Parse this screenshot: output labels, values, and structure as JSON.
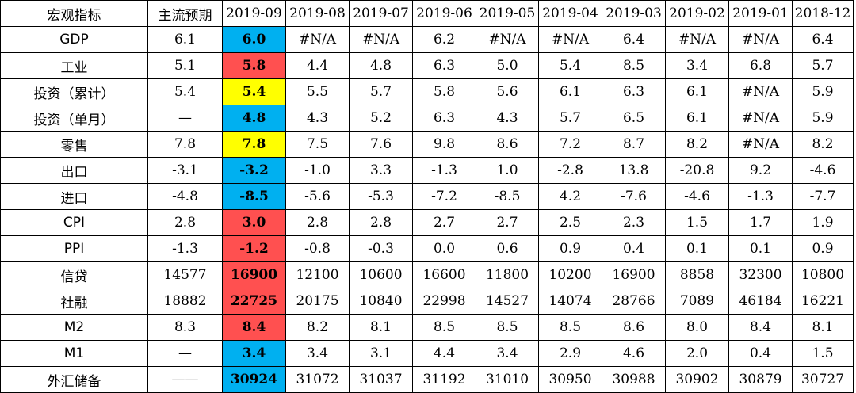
{
  "table": {
    "columns": [
      "宏观指标",
      "主流预期",
      "2019-09",
      "2019-08",
      "2019-07",
      "2019-06",
      "2019-05",
      "2019-04",
      "2019-03",
      "2019-02",
      "2019-01",
      "2018-12"
    ],
    "highlight_colors": {
      "blue": "#00b0f0",
      "red": "#ff5050",
      "yellow": "#ffff00"
    },
    "rows": [
      {
        "indicator": "GDP",
        "expected": "6.1",
        "highlight": "blue",
        "values": [
          "6.0",
          "#N/A",
          "#N/A",
          "6.2",
          "#N/A",
          "#N/A",
          "6.4",
          "#N/A",
          "#N/A",
          "6.4"
        ]
      },
      {
        "indicator": "工业",
        "expected": "5.1",
        "highlight": "red",
        "values": [
          "5.8",
          "4.4",
          "4.8",
          "6.3",
          "5.0",
          "5.4",
          "8.5",
          "3.4",
          "6.8",
          "5.7"
        ]
      },
      {
        "indicator": "投资（累计）",
        "expected": "5.4",
        "highlight": "yellow",
        "values": [
          "5.4",
          "5.5",
          "5.7",
          "5.8",
          "5.6",
          "6.1",
          "6.3",
          "6.1",
          "#N/A",
          "5.9"
        ]
      },
      {
        "indicator": "投资（单月）",
        "expected": "—",
        "highlight": "blue",
        "values": [
          "4.8",
          "4.3",
          "5.2",
          "6.3",
          "4.3",
          "5.7",
          "6.5",
          "6.1",
          "#N/A",
          "5.9"
        ]
      },
      {
        "indicator": "零售",
        "expected": "7.8",
        "highlight": "yellow",
        "values": [
          "7.8",
          "7.5",
          "7.6",
          "9.8",
          "8.6",
          "7.2",
          "8.7",
          "8.2",
          "#N/A",
          "8.2"
        ]
      },
      {
        "indicator": "出口",
        "expected": "-3.1",
        "highlight": "blue",
        "values": [
          "-3.2",
          "-1.0",
          "3.3",
          "-1.3",
          "1.0",
          "-2.8",
          "13.8",
          "-20.8",
          "9.2",
          "-4.6"
        ]
      },
      {
        "indicator": "进口",
        "expected": "-4.8",
        "highlight": "blue",
        "values": [
          "-8.5",
          "-5.6",
          "-5.3",
          "-7.2",
          "-8.5",
          "4.2",
          "-7.6",
          "-4.6",
          "-1.3",
          "-7.7"
        ]
      },
      {
        "indicator": "CPI",
        "expected": "2.8",
        "highlight": "red",
        "values": [
          "3.0",
          "2.8",
          "2.8",
          "2.7",
          "2.7",
          "2.5",
          "2.3",
          "1.5",
          "1.7",
          "1.9"
        ]
      },
      {
        "indicator": "PPI",
        "expected": "-1.3",
        "highlight": "red",
        "values": [
          "-1.2",
          "-0.8",
          "-0.3",
          "0.0",
          "0.6",
          "0.9",
          "0.4",
          "0.1",
          "0.1",
          "0.9"
        ]
      },
      {
        "indicator": "信贷",
        "expected": "14577",
        "highlight": "red",
        "values": [
          "16900",
          "12100",
          "10600",
          "16600",
          "11800",
          "10200",
          "16900",
          "8858",
          "32300",
          "10800"
        ]
      },
      {
        "indicator": "社融",
        "expected": "18882",
        "highlight": "red",
        "values": [
          "22725",
          "20175",
          "10840",
          "22998",
          "14527",
          "14074",
          "28766",
          "7089",
          "46184",
          "16221"
        ]
      },
      {
        "indicator": "M2",
        "expected": "8.3",
        "highlight": "red",
        "values": [
          "8.4",
          "8.2",
          "8.1",
          "8.5",
          "8.5",
          "8.5",
          "8.6",
          "8.0",
          "8.4",
          "8.1"
        ]
      },
      {
        "indicator": "M1",
        "expected": "—",
        "highlight": "blue",
        "values": [
          "3.4",
          "3.4",
          "3.1",
          "4.4",
          "3.4",
          "2.9",
          "4.6",
          "2.0",
          "0.4",
          "1.5"
        ]
      },
      {
        "indicator": "外汇储备",
        "expected": "——",
        "highlight": "blue",
        "values": [
          "30924",
          "31072",
          "31037",
          "31192",
          "31010",
          "30950",
          "30988",
          "30902",
          "30879",
          "30727"
        ]
      }
    ]
  }
}
